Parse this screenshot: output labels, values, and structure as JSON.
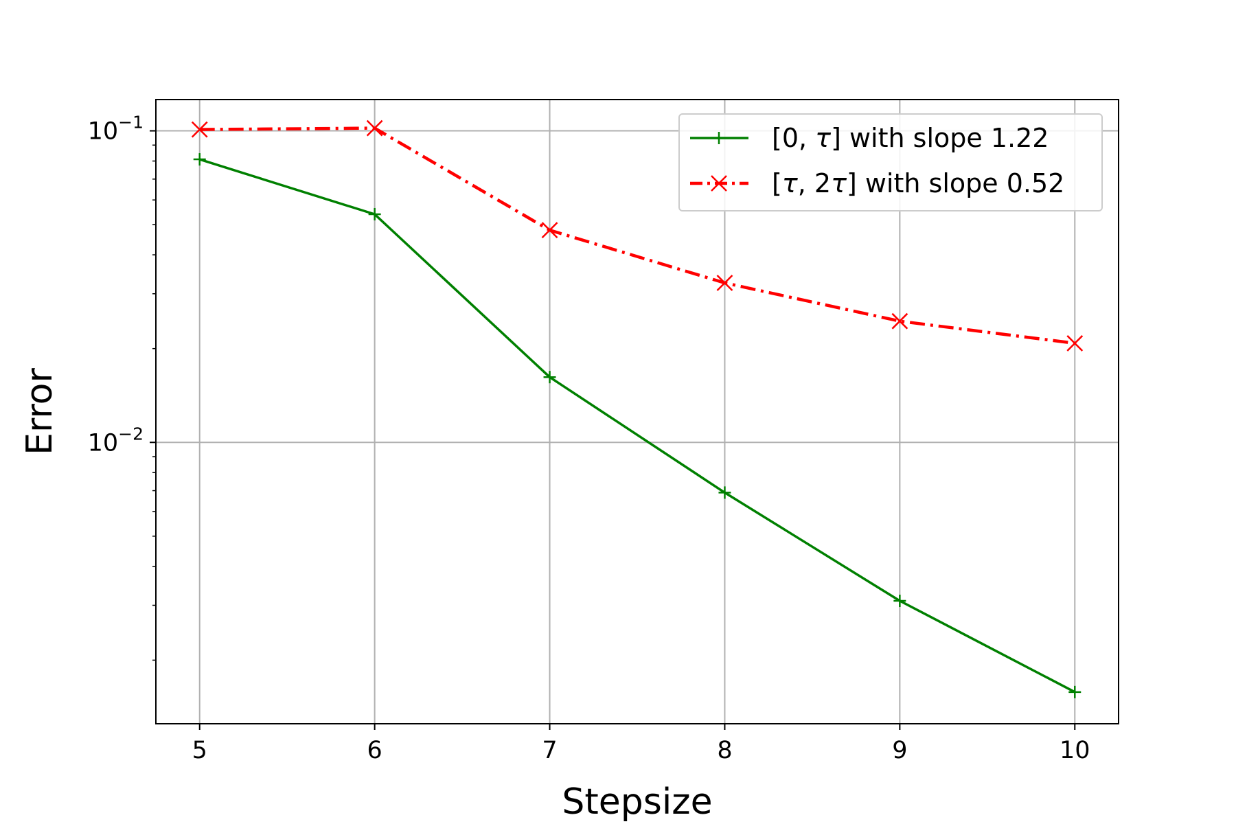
{
  "chart_data": {
    "type": "line",
    "xlabel": "Stepsize",
    "ylabel": "Error",
    "x": [
      5,
      6,
      7,
      8,
      9,
      10
    ],
    "xticks": [
      5,
      6,
      7,
      8,
      9,
      10
    ],
    "xlim": [
      4.75,
      10.25
    ],
    "yscale": "log",
    "ylim": [
      0.00125,
      0.126
    ],
    "yticks": [
      {
        "value": 0.1,
        "base": "10",
        "exp": "−1"
      },
      {
        "value": 0.01,
        "base": "10",
        "exp": "−2"
      }
    ],
    "grid": true,
    "legend_position": "top-right",
    "series": [
      {
        "name_prefix": "[0, ",
        "name_symbol": "τ",
        "name_suffix": "] with slope 1.22",
        "values": [
          0.081,
          0.054,
          0.0162,
          0.0069,
          0.0031,
          0.00158
        ],
        "color": "#008000",
        "marker": "plus",
        "linestyle": "solid"
      },
      {
        "name_prefix": "[",
        "name_symbol": "τ",
        "name_mid": ", 2",
        "name_symbol2": "τ",
        "name_suffix": "] with slope 0.52",
        "values": [
          0.101,
          0.102,
          0.048,
          0.0325,
          0.0245,
          0.0208
        ],
        "color": "#ff0000",
        "marker": "x",
        "linestyle": "dashdot"
      }
    ]
  }
}
